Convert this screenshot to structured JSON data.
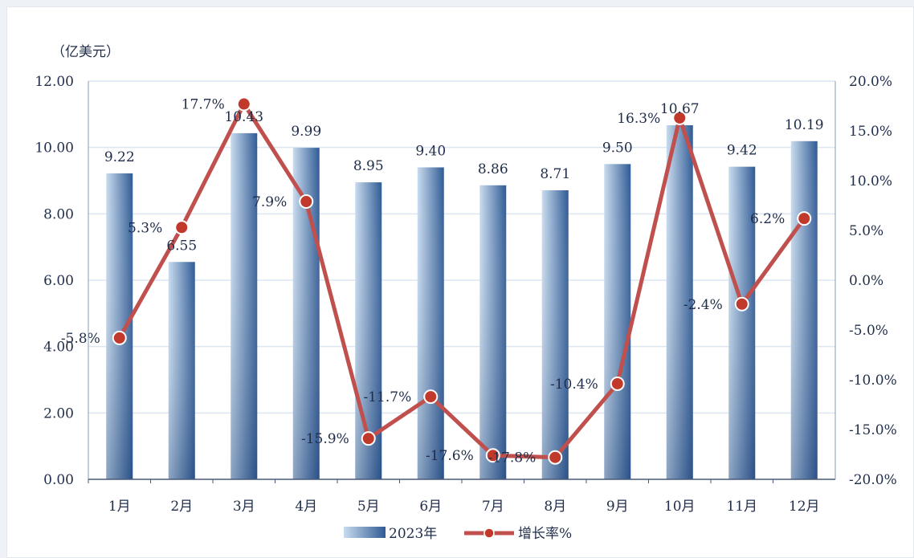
{
  "chart_data": {
    "type": "bar",
    "y_unit_label": "（亿美元）",
    "categories": [
      "1月",
      "2月",
      "3月",
      "4月",
      "5月",
      "6月",
      "7月",
      "8月",
      "9月",
      "10月",
      "11月",
      "12月"
    ],
    "series": [
      {
        "name": "2023年",
        "type": "bar",
        "axis": "left",
        "values": [
          9.22,
          6.55,
          10.43,
          9.99,
          8.95,
          9.4,
          8.86,
          8.71,
          9.5,
          10.67,
          9.42,
          10.19
        ],
        "labels": [
          "9.22",
          "6.55",
          "10.43",
          "9.99",
          "8.95",
          "9.40",
          "8.86",
          "8.71",
          "9.50",
          "10.67",
          "9.42",
          "10.19"
        ]
      },
      {
        "name": "增长率%",
        "type": "line",
        "axis": "right",
        "values": [
          -5.8,
          5.3,
          17.7,
          7.9,
          -15.9,
          -11.7,
          -17.6,
          -17.8,
          -10.4,
          16.3,
          -2.4,
          6.2
        ],
        "labels": [
          "-5.8%",
          "5.3%",
          "17.7%",
          "7.9%",
          "-15.9%",
          "-11.7%",
          "-17.6%",
          "-17.8%",
          "-10.4%",
          "16.3%",
          "-2.4%",
          "6.2%"
        ]
      }
    ],
    "y_left": {
      "min": 0,
      "max": 12,
      "ticks": [
        "0.00",
        "2.00",
        "4.00",
        "6.00",
        "8.00",
        "10.00",
        "12.00"
      ]
    },
    "y_right": {
      "min": -20,
      "max": 20,
      "ticks": [
        "-20.0%",
        "-15.0%",
        "-10.0%",
        "-5.0%",
        "0.0%",
        "5.0%",
        "10.0%",
        "15.0%",
        "20.0%"
      ]
    },
    "grid": true,
    "legend_position": "bottom",
    "colors": {
      "bar_light": "#c9dcef",
      "bar_dark": "#2f5a94",
      "line": "#c0504d",
      "marker": "#c0392b",
      "grid": "#dbe6f2"
    }
  }
}
